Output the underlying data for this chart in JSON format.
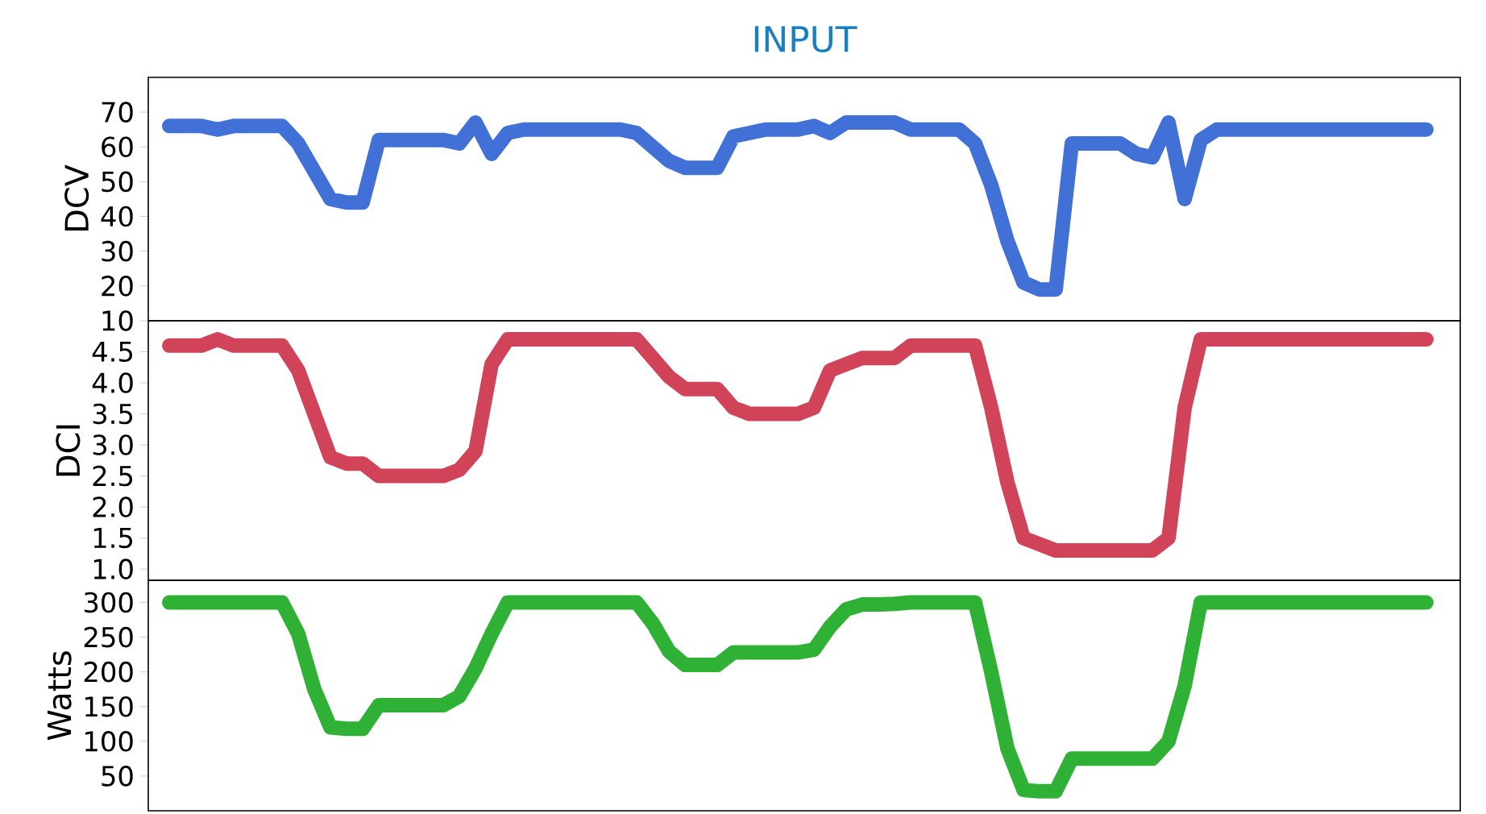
{
  "chart_data": [
    {
      "type": "line",
      "title": "INPUT",
      "ylabel": "DCV",
      "tick_labels": "y",
      "ylim": [
        10,
        80
      ],
      "yticks": [
        10,
        20,
        30,
        40,
        50,
        60,
        70
      ],
      "categories": [
        null,
        null,
        null,
        null,
        null,
        null,
        null,
        null,
        null,
        null,
        null,
        null,
        null,
        null,
        null,
        null,
        null,
        null,
        null,
        null,
        null,
        null,
        null,
        null,
        null,
        null,
        null,
        null,
        null,
        null,
        null,
        null,
        null,
        null,
        null,
        null,
        null,
        null,
        null,
        null,
        null,
        null,
        null,
        null,
        null,
        null,
        null,
        null,
        null,
        null,
        null,
        null,
        null,
        null,
        null,
        null,
        null,
        null,
        null,
        null,
        null,
        null,
        null,
        null,
        null,
        null,
        null,
        null,
        null,
        null,
        null,
        null,
        null,
        null,
        null,
        null,
        null,
        null,
        null
      ],
      "series": [
        {
          "color": "#4171d6",
          "values": [
            66,
            66,
            66,
            65,
            66,
            66,
            66,
            66,
            61,
            53,
            45,
            44,
            44,
            62,
            62,
            62,
            62,
            62,
            61,
            67,
            58,
            64,
            65,
            65,
            65,
            65,
            65,
            65,
            65,
            64,
            60,
            56,
            54,
            54,
            54,
            63,
            64,
            65,
            65,
            65,
            66,
            64,
            67,
            67,
            67,
            67,
            65,
            65,
            65,
            65,
            61,
            49,
            33,
            21,
            19,
            19,
            61,
            61,
            61,
            61,
            58,
            57,
            67,
            45,
            62,
            65,
            65,
            65,
            65,
            65,
            65,
            65,
            65,
            65,
            65,
            65,
            65,
            65,
            65
          ]
        }
      ]
    },
    {
      "type": "line",
      "ylabel": "DCI",
      "tick_labels": "y",
      "ylim": [
        0.82,
        5.0
      ],
      "yticks": [
        {
          "value": 1,
          "label": "1.0"
        },
        1.5,
        {
          "value": 2,
          "label": "2.0"
        },
        2.5,
        {
          "value": 3,
          "label": "3.0"
        },
        3.5,
        {
          "value": 4,
          "label": "4.0"
        },
        4.5
      ],
      "categories": [
        null,
        null,
        null,
        null,
        null,
        null,
        null,
        null,
        null,
        null,
        null,
        null,
        null,
        null,
        null,
        null,
        null,
        null,
        null,
        null,
        null,
        null,
        null,
        null,
        null,
        null,
        null,
        null,
        null,
        null,
        null,
        null,
        null,
        null,
        null,
        null,
        null,
        null,
        null,
        null,
        null,
        null,
        null,
        null,
        null,
        null,
        null,
        null,
        null,
        null,
        null,
        null,
        null,
        null,
        null,
        null,
        null,
        null,
        null,
        null,
        null,
        null,
        null,
        null,
        null,
        null,
        null,
        null,
        null,
        null,
        null,
        null,
        null,
        null,
        null,
        null,
        null,
        null,
        null
      ],
      "series": [
        {
          "color": "#d04358",
          "values": [
            4.6,
            4.6,
            4.6,
            4.7,
            4.6,
            4.6,
            4.6,
            4.6,
            4.2,
            3.5,
            2.8,
            2.7,
            2.7,
            2.5,
            2.5,
            2.5,
            2.5,
            2.5,
            2.6,
            2.9,
            4.3,
            4.7,
            4.7,
            4.7,
            4.7,
            4.7,
            4.7,
            4.7,
            4.7,
            4.7,
            4.4,
            4.1,
            3.9,
            3.9,
            3.9,
            3.6,
            3.5,
            3.5,
            3.5,
            3.5,
            3.6,
            4.2,
            4.3,
            4.4,
            4.4,
            4.4,
            4.6,
            4.6,
            4.6,
            4.6,
            4.6,
            3.6,
            2.4,
            1.5,
            1.4,
            1.3,
            1.3,
            1.3,
            1.3,
            1.3,
            1.3,
            1.3,
            1.5,
            3.6,
            4.7,
            4.7,
            4.7,
            4.7,
            4.7,
            4.7,
            4.7,
            4.7,
            4.7,
            4.7,
            4.7,
            4.7,
            4.7,
            4.7,
            4.7
          ]
        }
      ]
    },
    {
      "type": "line",
      "ylabel": "Watts",
      "tick_labels": "y",
      "ylim": [
        0,
        332
      ],
      "yticks": [
        50,
        100,
        150,
        200,
        250,
        300
      ],
      "categories": [
        null,
        null,
        null,
        null,
        null,
        null,
        null,
        null,
        null,
        null,
        null,
        null,
        null,
        null,
        null,
        null,
        null,
        null,
        null,
        null,
        null,
        null,
        null,
        null,
        null,
        null,
        null,
        null,
        null,
        null,
        null,
        null,
        null,
        null,
        null,
        null,
        null,
        null,
        null,
        null,
        null,
        null,
        null,
        null,
        null,
        null,
        null,
        null,
        null,
        null,
        null,
        null,
        null,
        null,
        null,
        null,
        null,
        null,
        null,
        null,
        null,
        null,
        null,
        null,
        null,
        null,
        null,
        null,
        null,
        null,
        null,
        null,
        null,
        null,
        null,
        null,
        null,
        null,
        null
      ],
      "series": [
        {
          "color": "#2eb135",
          "values": [
            300,
            300,
            300,
            300,
            300,
            300,
            300,
            300,
            255,
            175,
            120,
            118,
            118,
            152,
            152,
            152,
            152,
            152,
            165,
            205,
            255,
            300,
            300,
            300,
            300,
            300,
            300,
            300,
            300,
            300,
            270,
            230,
            210,
            210,
            210,
            228,
            228,
            228,
            228,
            228,
            232,
            265,
            290,
            297,
            297,
            298,
            300,
            300,
            300,
            300,
            300,
            200,
            90,
            30,
            28,
            28,
            75,
            75,
            75,
            75,
            75,
            75,
            100,
            180,
            300,
            300,
            300,
            300,
            300,
            300,
            300,
            300,
            300,
            300,
            300,
            300,
            300,
            300,
            300
          ]
        }
      ]
    }
  ]
}
